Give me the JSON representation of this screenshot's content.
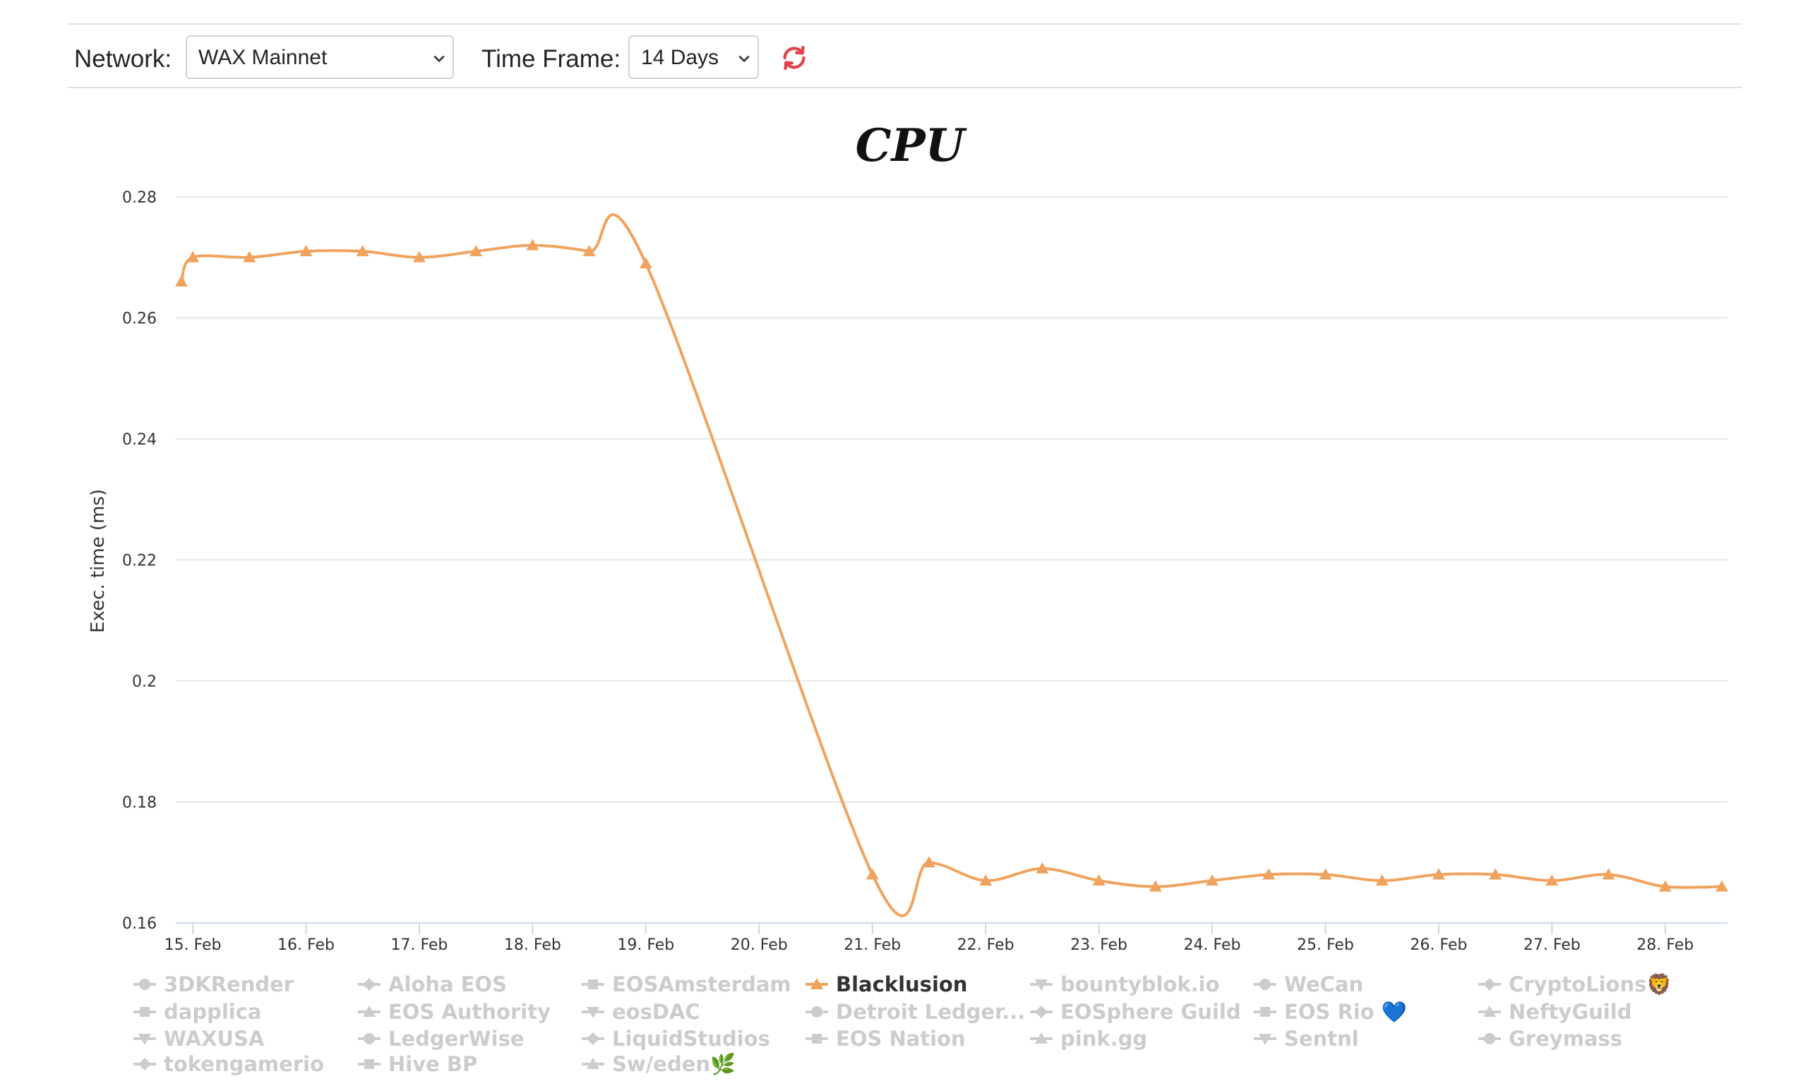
{
  "toolbar": {
    "network_label": "Network:",
    "network_value": "WAX Mainnet",
    "timeframe_label": "Time Frame:",
    "timeframe_value": "14 Days",
    "refresh_icon": "refresh-icon",
    "refresh_color": "#e0434b"
  },
  "chart_data": {
    "type": "line",
    "title": "CPU",
    "xlabel": "",
    "ylabel": "Exec. time (ms)",
    "ylim": [
      0.16,
      0.28
    ],
    "yticks": [
      "0.28",
      "0.26",
      "0.24",
      "0.22",
      "0.2",
      "0.18",
      "0.16"
    ],
    "xlim": [
      "2023-02-14T20:24",
      "2023-02-28T13:12"
    ],
    "xticks": [
      "15. Feb",
      "16. Feb",
      "17. Feb",
      "18. Feb",
      "19. Feb",
      "20. Feb",
      "21. Feb",
      "22. Feb",
      "23. Feb",
      "24. Feb",
      "25. Feb",
      "26. Feb",
      "27. Feb",
      "28. Feb"
    ],
    "grid": true,
    "legend_position": "bottom",
    "series": [
      {
        "name": "Blacklusion",
        "color": "#f0a35e",
        "marker": "triangle",
        "visible": true,
        "points": [
          [
            "2023-02-14T21:36",
            0.266
          ],
          [
            "2023-02-15T00:00",
            0.27
          ],
          [
            "2023-02-15T12:00",
            0.27
          ],
          [
            "2023-02-16T00:00",
            0.271
          ],
          [
            "2023-02-16T12:00",
            0.271
          ],
          [
            "2023-02-17T00:00",
            0.27
          ],
          [
            "2023-02-17T12:00",
            0.271
          ],
          [
            "2023-02-18T00:00",
            0.272
          ],
          [
            "2023-02-18T12:00",
            0.271
          ],
          [
            "2023-02-19T00:00",
            0.269
          ],
          [
            "2023-02-21T00:00",
            0.168
          ],
          [
            "2023-02-21T12:00",
            0.17
          ],
          [
            "2023-02-22T00:00",
            0.167
          ],
          [
            "2023-02-22T12:00",
            0.169
          ],
          [
            "2023-02-23T00:00",
            0.167
          ],
          [
            "2023-02-23T12:00",
            0.166
          ],
          [
            "2023-02-24T00:00",
            0.167
          ],
          [
            "2023-02-24T12:00",
            0.168
          ],
          [
            "2023-02-25T00:00",
            0.168
          ],
          [
            "2023-02-25T12:00",
            0.167
          ],
          [
            "2023-02-26T00:00",
            0.168
          ],
          [
            "2023-02-26T12:00",
            0.168
          ],
          [
            "2023-02-27T00:00",
            0.167
          ],
          [
            "2023-02-27T12:00",
            0.168
          ],
          [
            "2023-02-28T00:00",
            0.166
          ],
          [
            "2023-02-28T12:00",
            0.166
          ]
        ]
      }
    ],
    "legend_colors": {
      "active": "#333333",
      "inactive": "#cccccc"
    },
    "legend": [
      {
        "name": "3DKRender",
        "marker": "circle",
        "active": false
      },
      {
        "name": "Aloha EOS",
        "marker": "diamond",
        "active": false
      },
      {
        "name": "EOSAmsterdam",
        "marker": "square",
        "active": false
      },
      {
        "name": "Blacklusion",
        "marker": "triangle",
        "active": true
      },
      {
        "name": "bountyblok.io",
        "marker": "triangle-down",
        "active": false
      },
      {
        "name": "WeCan",
        "marker": "circle",
        "active": false
      },
      {
        "name": "CryptoLions🦁",
        "marker": "diamond",
        "active": false
      },
      {
        "name": "dapplica",
        "marker": "square",
        "active": false
      },
      {
        "name": "EOS Authority",
        "marker": "triangle",
        "active": false
      },
      {
        "name": "eosDAC",
        "marker": "triangle-down",
        "active": false
      },
      {
        "name": "Detroit Ledger...",
        "marker": "circle",
        "active": false
      },
      {
        "name": "EOSphere Guild",
        "marker": "diamond",
        "active": false
      },
      {
        "name": "EOS Rio 💙",
        "marker": "square",
        "active": false
      },
      {
        "name": "NeftyGuild",
        "marker": "triangle",
        "active": false
      },
      {
        "name": "WAXUSA",
        "marker": "triangle-down",
        "active": false
      },
      {
        "name": "LedgerWise",
        "marker": "circle",
        "active": false
      },
      {
        "name": "LiquidStudios",
        "marker": "diamond",
        "active": false
      },
      {
        "name": "EOS Nation",
        "marker": "square",
        "active": false
      },
      {
        "name": "pink.gg",
        "marker": "triangle",
        "active": false
      },
      {
        "name": "Sentnl",
        "marker": "triangle-down",
        "active": false
      },
      {
        "name": "Greymass",
        "marker": "circle",
        "active": false
      },
      {
        "name": "tokengamerio",
        "marker": "diamond",
        "active": false
      },
      {
        "name": "Hive BP",
        "marker": "square",
        "active": false
      },
      {
        "name": "Sw/eden🌿",
        "marker": "triangle",
        "active": false
      }
    ]
  }
}
